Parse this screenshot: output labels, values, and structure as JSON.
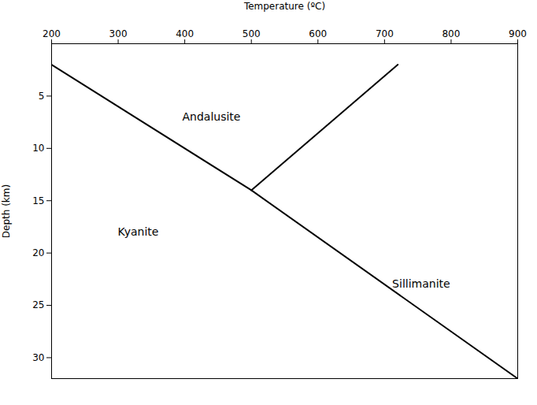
{
  "chart_data": {
    "type": "line",
    "xlabel": "Temperature (ºC)",
    "ylabel": "Depth (km)",
    "xlim": [
      200,
      900
    ],
    "ylim": [
      32,
      0
    ],
    "xticks": [
      200,
      300,
      400,
      500,
      600,
      700,
      800,
      900
    ],
    "yticks": [
      5,
      10,
      15,
      20,
      25,
      30
    ],
    "color": "#000000",
    "grid": false,
    "series": [
      {
        "x": [
          200,
          500
        ],
        "values": [
          2,
          14
        ]
      },
      {
        "x": [
          720,
          500
        ],
        "values": [
          2,
          14
        ]
      },
      {
        "x": [
          500,
          900
        ],
        "values": [
          14,
          32
        ]
      }
    ],
    "annotations": [
      {
        "text": "Andalusite",
        "x": 440,
        "y": 7
      },
      {
        "text": "Kyanite",
        "x": 330,
        "y": 18
      },
      {
        "text": "Sillimanite",
        "x": 755,
        "y": 23
      }
    ]
  }
}
